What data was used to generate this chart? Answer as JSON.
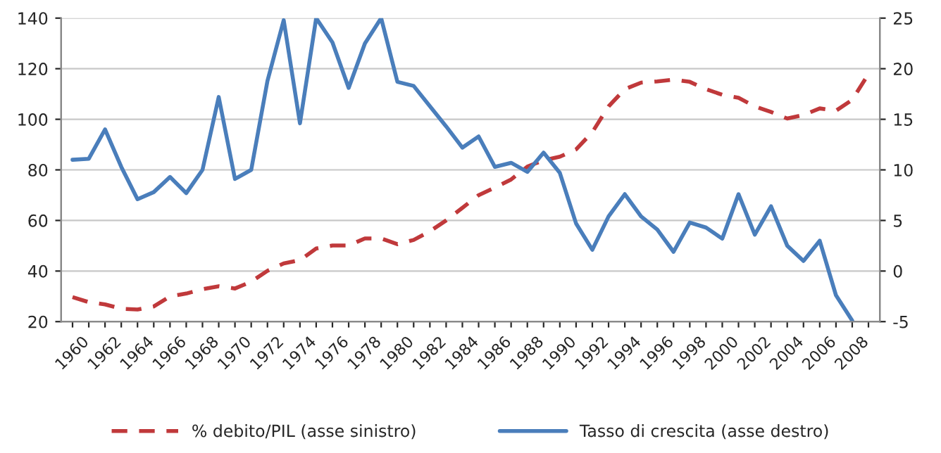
{
  "chart_data": {
    "type": "line",
    "categories": [
      "1960",
      null,
      "1962",
      null,
      "1964",
      null,
      "1966",
      null,
      "1968",
      null,
      "1970",
      null,
      "1972",
      null,
      "1974",
      null,
      "1976",
      null,
      "1978",
      null,
      "1980",
      null,
      "1982",
      null,
      "1984",
      null,
      "1986",
      null,
      "1988",
      null,
      "1990",
      null,
      "1992",
      null,
      "1994",
      null,
      "1996",
      null,
      "1998",
      null,
      "2000",
      null,
      "2002",
      null,
      "2004",
      null,
      "2006",
      null,
      "2008",
      null
    ],
    "series": [
      {
        "name": "% debito/PIL (asse sinistro)",
        "color": "#c0393b",
        "line_style": "dashed",
        "values": [
          29.7,
          27.7,
          26.8,
          25.1,
          24.8,
          26.0,
          30.0,
          31.1,
          32.8,
          34.0,
          33.1,
          35.8,
          40.1,
          43.0,
          44.3,
          48.9,
          50.1,
          50.1,
          52.9,
          52.9,
          50.6,
          52.3,
          55.7,
          60.0,
          65.0,
          70.0,
          73.0,
          76.2,
          81.3,
          83.8,
          85.2,
          88.1,
          94.9,
          105.1,
          111.9,
          114.5,
          115.0,
          115.7,
          114.8,
          111.9,
          109.7,
          108.5,
          105.1,
          102.9,
          100.3,
          101.7,
          104.3,
          103.4,
          107.7,
          117.9
        ]
      },
      {
        "name": "Tasso di crescita (asse destro)",
        "color": "#4a7ebb",
        "line_style": "solid",
        "axis": "y2",
        "values": [
          11.0,
          11.1,
          14.0,
          10.3,
          7.1,
          7.8,
          9.3,
          7.7,
          10.0,
          17.2,
          9.1,
          10.0,
          18.8,
          24.8,
          14.6,
          25.0,
          22.6,
          18.1,
          22.5,
          25.0,
          18.7,
          18.3,
          16.3,
          14.3,
          12.2,
          13.3,
          10.3,
          10.7,
          9.8,
          11.7,
          9.7,
          4.7,
          2.1,
          5.4,
          7.6,
          5.4,
          4.1,
          1.9,
          4.8,
          4.3,
          3.2,
          7.6,
          3.6,
          6.4,
          2.5,
          1.0,
          3.0,
          -2.4,
          -4.9,
          null
        ]
      }
    ],
    "ylim": [
      20,
      140
    ],
    "yticks": [
      20,
      40,
      60,
      80,
      100,
      120,
      140
    ],
    "y2lim": [
      -5,
      25
    ],
    "y2ticks": [
      -5,
      0,
      5,
      10,
      15,
      20,
      25
    ],
    "grid": "y",
    "legend": "bottom"
  }
}
